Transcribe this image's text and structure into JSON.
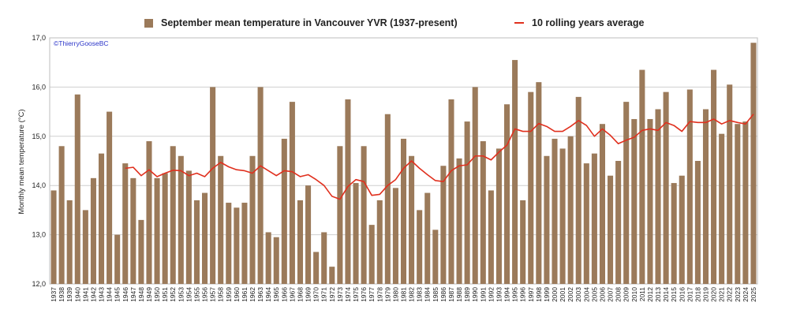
{
  "chart_data": {
    "type": "bar",
    "title": "",
    "legend": {
      "bar_label": "September mean temperature in Vancouver YVR (1937-present)",
      "line_label": "10 rolling years average",
      "placement": "top"
    },
    "credit": "©ThierryGooseBC",
    "xlabel": "",
    "ylabel": "Monthly mean temperature (°C)",
    "ylim": [
      12.0,
      17.0
    ],
    "yticks": [
      "12,0",
      "13,0",
      "14,0",
      "15,0",
      "16,0",
      "17,0"
    ],
    "grid": true,
    "colors": {
      "bar": "#9b7a5a",
      "line": "#e0301e",
      "credit": "#2b35c9"
    },
    "categories": [
      "1937",
      "1938",
      "1939",
      "1940",
      "1941",
      "1942",
      "1943",
      "1944",
      "1945",
      "1946",
      "1947",
      "1948",
      "1949",
      "1950",
      "1951",
      "1952",
      "1953",
      "1954",
      "1955",
      "1956",
      "1957",
      "1958",
      "1959",
      "1960",
      "1961",
      "1962",
      "1963",
      "1964",
      "1965",
      "1966",
      "1967",
      "1968",
      "1969",
      "1970",
      "1971",
      "1972",
      "1973",
      "1974",
      "1975",
      "1976",
      "1977",
      "1978",
      "1979",
      "1980",
      "1981",
      "1982",
      "1983",
      "1984",
      "1985",
      "1986",
      "1987",
      "1988",
      "1989",
      "1990",
      "1991",
      "1992",
      "1993",
      "1994",
      "1995",
      "1996",
      "1997",
      "1998",
      "1999",
      "2000",
      "2001",
      "2002",
      "2003",
      "2004",
      "2005",
      "2006",
      "2007",
      "2008",
      "2009",
      "2010",
      "2011",
      "2012",
      "2013",
      "2014",
      "2015",
      "2016",
      "2017",
      "2018",
      "2019",
      "2020",
      "2021",
      "2022",
      "2023",
      "2024",
      "2025"
    ],
    "series": [
      {
        "name": "September mean temperature in Vancouver YVR (1937-present)",
        "kind": "bar",
        "values": [
          13.9,
          14.8,
          13.7,
          15.85,
          13.5,
          14.15,
          14.65,
          15.5,
          13.0,
          14.45,
          14.15,
          13.3,
          14.9,
          14.15,
          14.25,
          14.8,
          14.6,
          14.3,
          13.7,
          13.85,
          16.0,
          14.6,
          13.65,
          13.55,
          13.65,
          14.6,
          16.0,
          13.05,
          12.95,
          14.95,
          15.7,
          13.7,
          14.0,
          12.65,
          13.05,
          12.35,
          14.8,
          15.75,
          14.05,
          14.8,
          13.2,
          13.7,
          15.45,
          13.95,
          14.95,
          14.6,
          13.5,
          13.85,
          13.1,
          14.4,
          15.75,
          14.55,
          15.3,
          16.0,
          14.9,
          13.9,
          14.75,
          15.65,
          16.55,
          13.7,
          15.9,
          16.1,
          14.6,
          14.95,
          14.75,
          15.0,
          15.8,
          14.45,
          14.65,
          15.25,
          14.2,
          14.5,
          15.7,
          15.35,
          16.35,
          15.35,
          15.55,
          15.9,
          14.05,
          14.2,
          15.95,
          14.5,
          15.55,
          16.35,
          15.05,
          16.05,
          15.25,
          15.3,
          16.9
        ]
      },
      {
        "name": "10 rolling years average",
        "kind": "line",
        "values": [
          null,
          null,
          null,
          null,
          null,
          null,
          null,
          null,
          null,
          14.35,
          14.37,
          14.2,
          14.32,
          14.18,
          14.25,
          14.31,
          14.3,
          14.2,
          14.25,
          14.18,
          14.35,
          14.47,
          14.38,
          14.32,
          14.3,
          14.25,
          14.4,
          14.3,
          14.2,
          14.3,
          14.28,
          14.18,
          14.22,
          14.12,
          14.0,
          13.78,
          13.72,
          13.98,
          14.12,
          14.08,
          13.8,
          13.82,
          14.0,
          14.12,
          14.35,
          14.5,
          14.35,
          14.22,
          14.1,
          14.08,
          14.3,
          14.4,
          14.42,
          14.6,
          14.6,
          14.52,
          14.68,
          14.82,
          15.15,
          15.1,
          15.1,
          15.26,
          15.2,
          15.1,
          15.1,
          15.2,
          15.32,
          15.22,
          15.0,
          15.15,
          15.02,
          14.85,
          14.92,
          14.98,
          15.12,
          15.15,
          15.12,
          15.28,
          15.22,
          15.1,
          15.3,
          15.28,
          15.28,
          15.35,
          15.25,
          15.32,
          15.28,
          15.25,
          15.45
        ]
      }
    ]
  }
}
